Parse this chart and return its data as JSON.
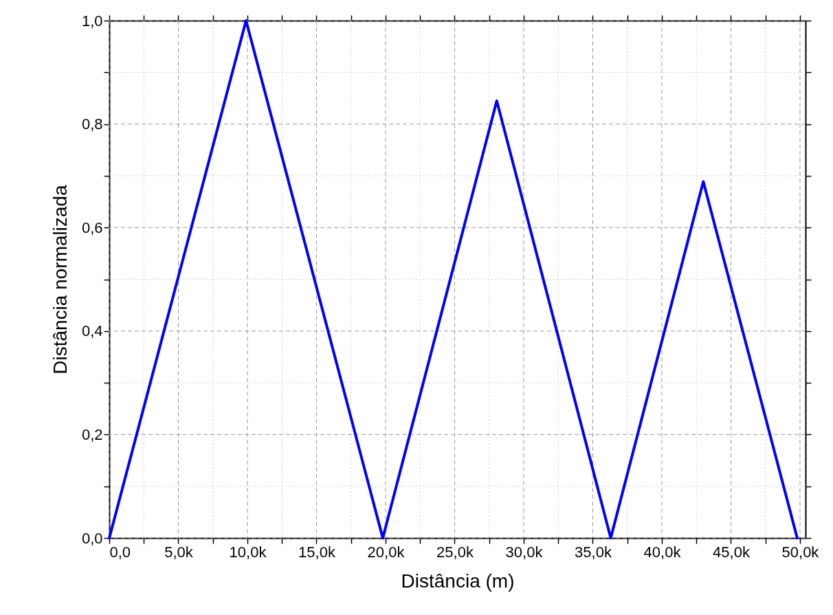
{
  "chart_data": {
    "type": "line",
    "xlabel": "Distância (m)",
    "ylabel": "Distância normalizada",
    "x": [
      0,
      9900,
      19800,
      28050,
      36300,
      43000,
      49800
    ],
    "series": [
      {
        "color": "#0000ff",
        "values": [
          0,
          1,
          0,
          0.845,
          0,
          0.689,
          0
        ]
      }
    ],
    "xlim": [
      0,
      50400
    ],
    "ylim": [
      0,
      1
    ],
    "xticks": [
      {
        "value": 0,
        "label": "0,0"
      },
      {
        "value": 2500,
        "label": null
      },
      {
        "value": 5000,
        "label": "5,0k"
      },
      {
        "value": 7500,
        "label": null
      },
      {
        "value": 10000,
        "label": "10,0k"
      },
      {
        "value": 12500,
        "label": null
      },
      {
        "value": 15000,
        "label": "15,0k"
      },
      {
        "value": 17500,
        "label": null
      },
      {
        "value": 20000,
        "label": "20,0k"
      },
      {
        "value": 22500,
        "label": null
      },
      {
        "value": 25000,
        "label": "25,0k"
      },
      {
        "value": 27500,
        "label": null
      },
      {
        "value": 30000,
        "label": "30,0k"
      },
      {
        "value": 32500,
        "label": null
      },
      {
        "value": 35000,
        "label": "35,0k"
      },
      {
        "value": 37500,
        "label": null
      },
      {
        "value": 40000,
        "label": "40,0k"
      },
      {
        "value": 42500,
        "label": null
      },
      {
        "value": 45000,
        "label": "45,0k"
      },
      {
        "value": 47500,
        "label": null
      },
      {
        "value": 50000,
        "label": "50,0k"
      }
    ],
    "yticks": [
      {
        "value": 0,
        "label": "0,0"
      },
      {
        "value": 0.1,
        "label": null
      },
      {
        "value": 0.2,
        "label": "0,2"
      },
      {
        "value": 0.3,
        "label": null
      },
      {
        "value": 0.4,
        "label": "0,4"
      },
      {
        "value": 0.5,
        "label": null
      },
      {
        "value": 0.6,
        "label": "0,6"
      },
      {
        "value": 0.7,
        "label": null
      },
      {
        "value": 0.8,
        "label": "0,8"
      },
      {
        "value": 0.9,
        "label": null
      },
      {
        "value": 1,
        "label": "1,0"
      }
    ],
    "grid": true,
    "marker": "none",
    "line_style": "solid"
  }
}
